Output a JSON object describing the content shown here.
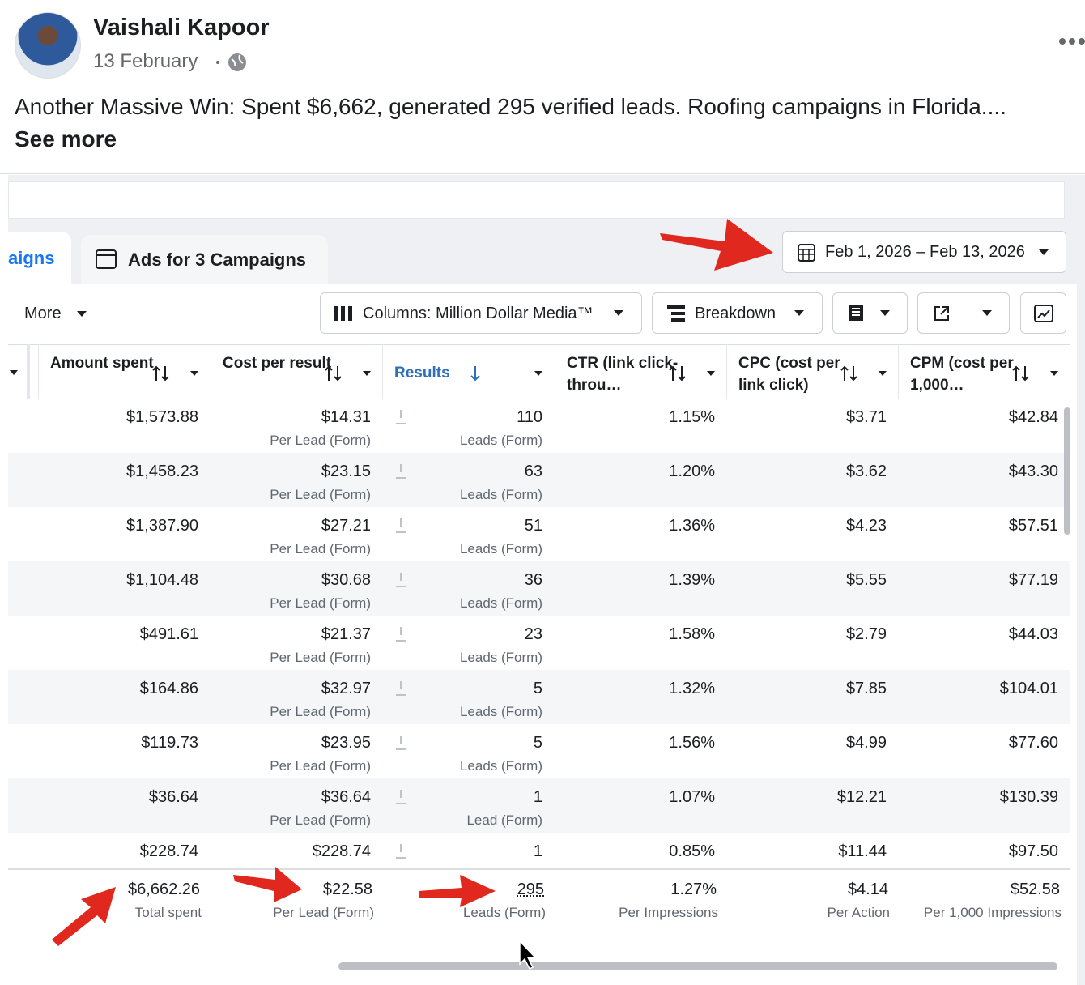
{
  "post": {
    "author": "Vaishali Kapoor",
    "date": "13 February",
    "text": "Another Massive Win: Spent $6,662, generated 295 verified leads. Roofing campaigns in Florida....",
    "see_more": "See more"
  },
  "tabs": [
    "aigns",
    "Ads for 3 Campaigns"
  ],
  "date_range": "Feb 1, 2026 – Feb 13, 2026",
  "toolbar": {
    "more": "More",
    "columns": "Columns: Million Dollar Media™",
    "breakdown": "Breakdown"
  },
  "table": {
    "headers": {
      "amount": "Amount spent",
      "cost": "Cost per result",
      "results": "Results",
      "ctr": "CTR (link click-throu…",
      "cpc": "CPC (cost per link click)",
      "cpm": "CPM (cost per 1,000…"
    },
    "rows": [
      {
        "amount": "$1,573.88",
        "cost": "$14.31",
        "cost_note": "Per Lead (Form)",
        "results": "110",
        "results_note": "Leads (Form)",
        "ctr": "1.15%",
        "cpc": "$3.71",
        "cpm": "$42.84"
      },
      {
        "amount": "$1,458.23",
        "cost": "$23.15",
        "cost_note": "Per Lead (Form)",
        "results": "63",
        "results_note": "Leads (Form)",
        "ctr": "1.20%",
        "cpc": "$3.62",
        "cpm": "$43.30"
      },
      {
        "amount": "$1,387.90",
        "cost": "$27.21",
        "cost_note": "Per Lead (Form)",
        "results": "51",
        "results_note": "Leads (Form)",
        "ctr": "1.36%",
        "cpc": "$4.23",
        "cpm": "$57.51"
      },
      {
        "amount": "$1,104.48",
        "cost": "$30.68",
        "cost_note": "Per Lead (Form)",
        "results": "36",
        "results_note": "Leads (Form)",
        "ctr": "1.39%",
        "cpc": "$5.55",
        "cpm": "$77.19"
      },
      {
        "amount": "$491.61",
        "cost": "$21.37",
        "cost_note": "Per Lead (Form)",
        "results": "23",
        "results_note": "Leads (Form)",
        "ctr": "1.58%",
        "cpc": "$2.79",
        "cpm": "$44.03"
      },
      {
        "amount": "$164.86",
        "cost": "$32.97",
        "cost_note": "Per Lead (Form)",
        "results": "5",
        "results_note": "Leads (Form)",
        "ctr": "1.32%",
        "cpc": "$7.85",
        "cpm": "$104.01"
      },
      {
        "amount": "$119.73",
        "cost": "$23.95",
        "cost_note": "Per Lead (Form)",
        "results": "5",
        "results_note": "Leads (Form)",
        "ctr": "1.56%",
        "cpc": "$4.99",
        "cpm": "$77.60"
      },
      {
        "amount": "$36.64",
        "cost": "$36.64",
        "cost_note": "Per Lead (Form)",
        "results": "1",
        "results_note": "Lead (Form)",
        "ctr": "1.07%",
        "cpc": "$12.21",
        "cpm": "$130.39"
      },
      {
        "amount": "$228.74",
        "cost": "$228.74",
        "results": "1",
        "ctr": "0.85%",
        "cpc": "$11.44",
        "cpm": "$97.50"
      }
    ],
    "totals": {
      "amount": "$6,662.26",
      "amount_note": "Total spent",
      "cost": "$22.58",
      "cost_note": "Per Lead (Form)",
      "results": "295",
      "results_note": "Leads (Form)",
      "ctr": "1.27%",
      "ctr_note": "Per Impressions",
      "cpc": "$4.14",
      "cpc_note": "Per Action",
      "cpm": "$52.58",
      "cpm_note": "Per 1,000 Impressions"
    }
  }
}
